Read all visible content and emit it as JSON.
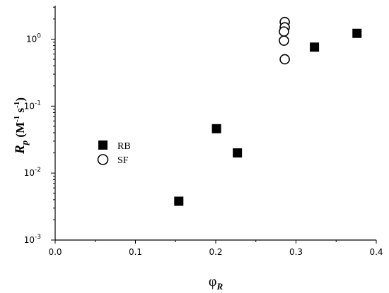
{
  "chart_data": {
    "type": "scatter",
    "title": "",
    "xlabel": {
      "symbol": "φ",
      "subscript": "R"
    },
    "ylabel": {
      "symbol": "R",
      "subscript": "p",
      "units_open": " (M",
      "units_exp1": "-1",
      "units_mid": " s",
      "units_exp2": "-1",
      "units_close": ")"
    },
    "xlim": [
      0.0,
      0.4
    ],
    "ylim_log10": [
      -3,
      0.5
    ],
    "yscale": "log",
    "grid": false,
    "legend_placement": "center-left",
    "x_ticks": [
      {
        "value": 0.0,
        "label": "0.0"
      },
      {
        "value": 0.1,
        "label": "0.1"
      },
      {
        "value": 0.2,
        "label": "0.2"
      },
      {
        "value": 0.3,
        "label": "0.3"
      },
      {
        "value": 0.4,
        "label": "0.4"
      }
    ],
    "y_ticks": [
      {
        "exp": -3,
        "base": "10",
        "sup": "-3"
      },
      {
        "exp": -2,
        "base": "10",
        "sup": "-2"
      },
      {
        "exp": -1,
        "base": "10",
        "sup": "-1"
      },
      {
        "exp": 0,
        "base": "10",
        "sup": "0"
      }
    ],
    "series": [
      {
        "name": "RB",
        "marker": "filled-square",
        "color": "#000000",
        "points": [
          {
            "x": 0.154,
            "y": 0.0038
          },
          {
            "x": 0.201,
            "y": 0.046
          },
          {
            "x": 0.227,
            "y": 0.02
          },
          {
            "x": 0.323,
            "y": 0.76
          },
          {
            "x": 0.376,
            "y": 1.22
          }
        ]
      },
      {
        "name": "SF",
        "marker": "open-circle",
        "color": "#000000",
        "points": [
          {
            "x": 0.286,
            "y": 1.8
          },
          {
            "x": 0.286,
            "y": 1.5
          },
          {
            "x": 0.285,
            "y": 1.3
          },
          {
            "x": 0.285,
            "y": 0.95
          },
          {
            "x": 0.286,
            "y": 0.5
          }
        ]
      }
    ]
  }
}
